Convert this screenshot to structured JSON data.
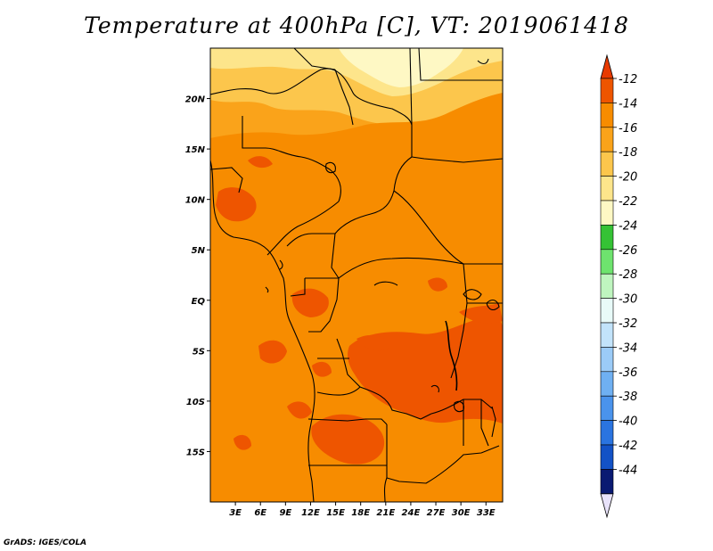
{
  "title": "Temperature at 400hPa [C], VT: 2019061418",
  "credit": "GrADS: IGES/COLA",
  "map": {
    "lon_range": [
      0,
      35
    ],
    "lat_range": [
      -20,
      25
    ],
    "lon_ticks": [
      {
        "value": 3,
        "label": "3E"
      },
      {
        "value": 6,
        "label": "6E"
      },
      {
        "value": 9,
        "label": "9E"
      },
      {
        "value": 12,
        "label": "12E"
      },
      {
        "value": 15,
        "label": "15E"
      },
      {
        "value": 18,
        "label": "18E"
      },
      {
        "value": 21,
        "label": "21E"
      },
      {
        "value": 24,
        "label": "24E"
      },
      {
        "value": 27,
        "label": "27E"
      },
      {
        "value": 30,
        "label": "30E"
      },
      {
        "value": 33,
        "label": "33E"
      }
    ],
    "lat_ticks": [
      {
        "value": 20,
        "label": "20N"
      },
      {
        "value": 15,
        "label": "15N"
      },
      {
        "value": 10,
        "label": "10N"
      },
      {
        "value": 5,
        "label": "5N"
      },
      {
        "value": 0,
        "label": "EQ"
      },
      {
        "value": -5,
        "label": "5S"
      },
      {
        "value": -10,
        "label": "10S"
      },
      {
        "value": -15,
        "label": "15S"
      }
    ]
  },
  "colorbar": {
    "levels": [
      {
        "label": "-12",
        "color": "#ee5500"
      },
      {
        "label": "-14",
        "color": "#f78c00"
      },
      {
        "label": "-16",
        "color": "#faa31a"
      },
      {
        "label": "-18",
        "color": "#fcc64c"
      },
      {
        "label": "-20",
        "color": "#fde58b"
      },
      {
        "label": "-22",
        "color": "#fef8c4"
      },
      {
        "label": "-24",
        "color": "#35c235"
      },
      {
        "label": "-26",
        "color": "#6ee36e"
      },
      {
        "label": "-28",
        "color": "#bff5bf"
      },
      {
        "label": "-30",
        "color": "#e8faf8"
      },
      {
        "label": "-32",
        "color": "#c2e3fa"
      },
      {
        "label": "-34",
        "color": "#9bcbf7"
      },
      {
        "label": "-36",
        "color": "#6fb0f2"
      },
      {
        "label": "-38",
        "color": "#4a93ec"
      },
      {
        "label": "-40",
        "color": "#2a74e0"
      },
      {
        "label": "-42",
        "color": "#1352c6"
      },
      {
        "label": "-44",
        "color": "#0b2a8f"
      }
    ],
    "top_arrow_color": "#e83a00",
    "bottom_arrow_color": "#e8e2fa",
    "bottom_cell_color": "#0a1a72"
  }
}
